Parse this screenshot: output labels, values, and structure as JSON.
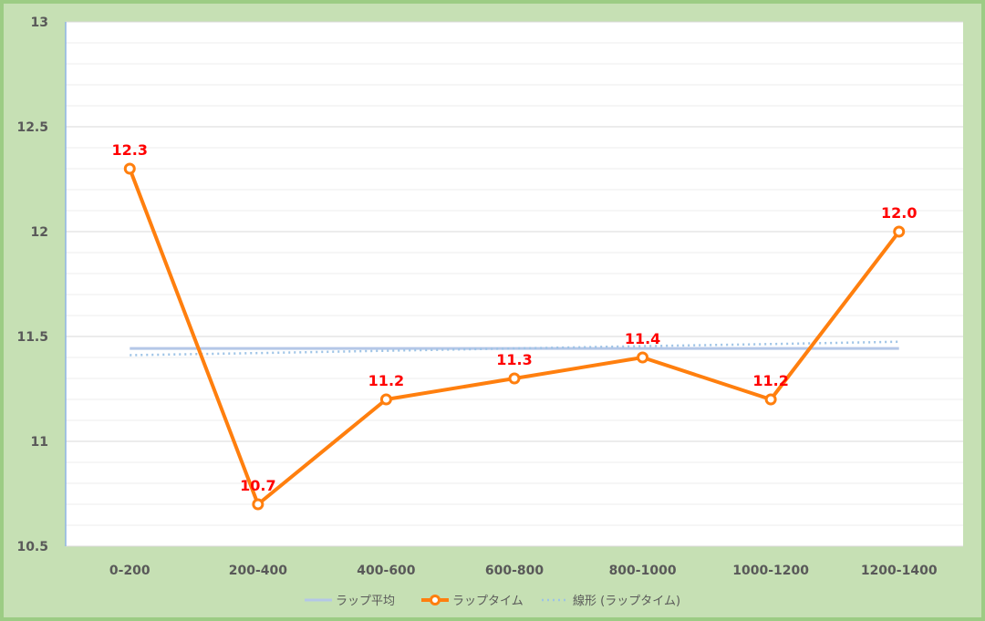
{
  "chart_data": {
    "type": "line",
    "categories": [
      "0-200",
      "200-400",
      "400-600",
      "600-800",
      "800-1000",
      "1000-1200",
      "1200-1400"
    ],
    "series": [
      {
        "name": "ラップ平均",
        "values": [
          11.443,
          11.443,
          11.443,
          11.443,
          11.443,
          11.443,
          11.443
        ],
        "color": "#b4c7e7",
        "style": "solid"
      },
      {
        "name": "ラップタイム",
        "values": [
          12.3,
          10.7,
          11.2,
          11.3,
          11.4,
          11.2,
          12.0
        ],
        "color": "#ff7f0e",
        "style": "solid-marker",
        "data_labels": [
          "12.3",
          "10.7",
          "11.2",
          "11.3",
          "11.4",
          "11.2",
          "12.0"
        ]
      },
      {
        "name": "線形 (ラップタイム)",
        "values": [
          11.411,
          11.421,
          11.432,
          11.443,
          11.454,
          11.464,
          11.475
        ],
        "color": "#9dc3e6",
        "style": "dotted"
      }
    ],
    "ylim": [
      10.5,
      13
    ],
    "yticks": [
      "10.5",
      "11",
      "11.5",
      "12",
      "12.5",
      "13"
    ],
    "ytick_values": [
      10.5,
      11,
      11.5,
      12,
      12.5,
      13
    ],
    "grid": true,
    "minor_grid_step": 0.1,
    "legend_position": "bottom",
    "xlabel": "",
    "ylabel": "",
    "title": ""
  }
}
